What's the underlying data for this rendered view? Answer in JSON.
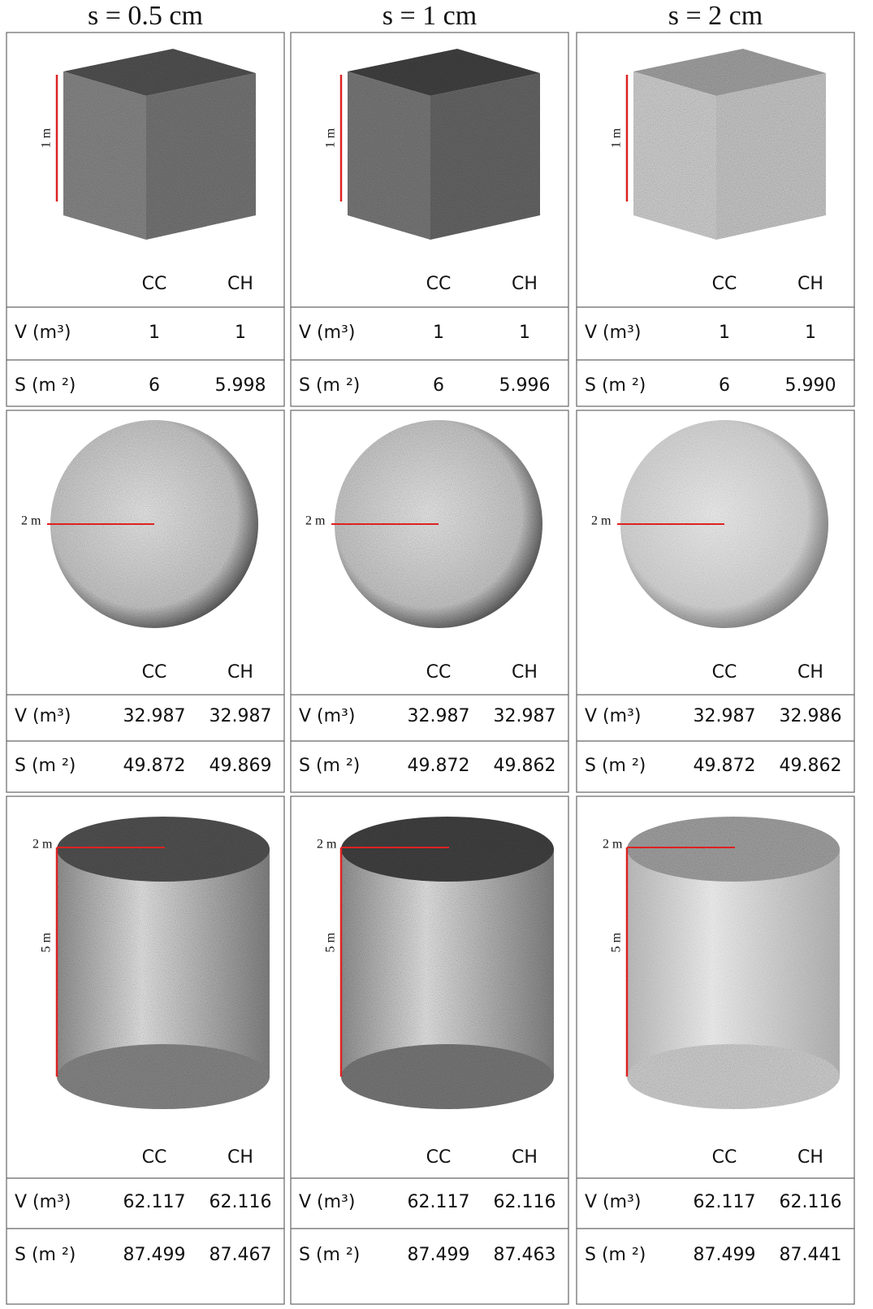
{
  "columns": [
    "s = 0.5 cm",
    "s = 1 cm",
    "s = 2 cm"
  ],
  "rows": [
    {
      "dimensions": [
        "1 m"
      ],
      "panels": [
        {
          "header": [
            "CC",
            "CH"
          ],
          "rows": [
            {
              "label": "V (m³)",
              "cc": "1",
              "ch": "1"
            },
            {
              "label": "S (m ²)",
              "cc": "6",
              "ch": "5.998"
            }
          ]
        },
        {
          "header": [
            "CC",
            "CH"
          ],
          "rows": [
            {
              "label": "V (m³)",
              "cc": "1",
              "ch": "1"
            },
            {
              "label": "S (m ²)",
              "cc": "6",
              "ch": "5.996"
            }
          ]
        },
        {
          "header": [
            "CC",
            "CH"
          ],
          "rows": [
            {
              "label": "V (m³)",
              "cc": "1",
              "ch": "1"
            },
            {
              "label": "S (m ²)",
              "cc": "6",
              "ch": "5.990"
            }
          ]
        }
      ]
    },
    {
      "dimensions": [
        "2 m"
      ],
      "panels": [
        {
          "header": [
            "CC",
            "CH"
          ],
          "rows": [
            {
              "label": "V (m³)",
              "cc": "32.987",
              "ch": "32.987"
            },
            {
              "label": "S (m ²)",
              "cc": "49.872",
              "ch": "49.869"
            }
          ]
        },
        {
          "header": [
            "CC",
            "CH"
          ],
          "rows": [
            {
              "label": "V (m³)",
              "cc": "32.987",
              "ch": "32.987"
            },
            {
              "label": "S (m ²)",
              "cc": "49.872",
              "ch": "49.862"
            }
          ]
        },
        {
          "header": [
            "CC",
            "CH"
          ],
          "rows": [
            {
              "label": "V (m³)",
              "cc": "32.987",
              "ch": "32.986"
            },
            {
              "label": "S (m ²)",
              "cc": "49.872",
              "ch": "49.862"
            }
          ]
        }
      ]
    },
    {
      "dimensions": [
        "2 m",
        "5 m"
      ],
      "panels": [
        {
          "header": [
            "CC",
            "CH"
          ],
          "rows": [
            {
              "label": "V (m³)",
              "cc": "62.117",
              "ch": "62.116"
            },
            {
              "label": "S (m ²)",
              "cc": "87.499",
              "ch": "87.467"
            }
          ]
        },
        {
          "header": [
            "CC",
            "CH"
          ],
          "rows": [
            {
              "label": "V (m³)",
              "cc": "62.117",
              "ch": "62.116"
            },
            {
              "label": "S (m ²)",
              "cc": "87.499",
              "ch": "87.463"
            }
          ]
        },
        {
          "header": [
            "CC",
            "CH"
          ],
          "rows": [
            {
              "label": "V (m³)",
              "cc": "62.117",
              "ch": "62.116"
            },
            {
              "label": "S (m ²)",
              "cc": "87.499",
              "ch": "87.441"
            }
          ]
        }
      ]
    }
  ]
}
